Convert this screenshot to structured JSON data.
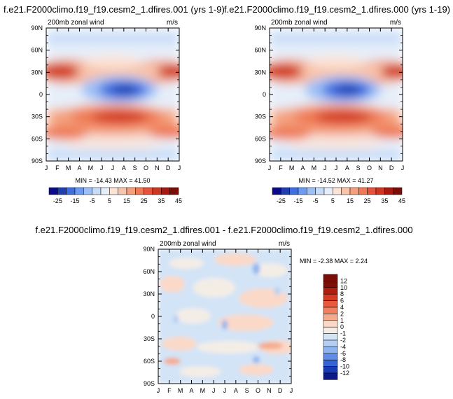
{
  "chart_data": [
    {
      "type": "heatmap",
      "title": "f.e21.F2000climo.f19_f19.cesm2_1.dfires.001 (yrs 1-9)",
      "subtitle_left": "200mb zonal wind",
      "subtitle_right": "m/s",
      "x_ticks": [
        "J",
        "F",
        "M",
        "A",
        "M",
        "J",
        "J",
        "A",
        "S",
        "O",
        "N",
        "D",
        "J"
      ],
      "y_ticks": [
        "90N",
        "60N",
        "30N",
        "0",
        "30S",
        "60S",
        "90S"
      ],
      "stats": "MIN = -14.43 MAX = 41.50",
      "colorbar_labels": [
        "-25",
        "-15",
        "-5",
        "5",
        "15",
        "25",
        "35",
        "45"
      ],
      "zmin": -14.43,
      "zmax": 41.5
    },
    {
      "type": "heatmap",
      "title": "f.e21.F2000climo.f19_f19.cesm2_1.dfires.000 (yrs 1-19)",
      "subtitle_left": "200mb zonal wind",
      "subtitle_right": "m/s",
      "x_ticks": [
        "J",
        "F",
        "M",
        "A",
        "M",
        "J",
        "J",
        "A",
        "S",
        "O",
        "N",
        "D",
        "J"
      ],
      "y_ticks": [
        "90N",
        "60N",
        "30N",
        "0",
        "30S",
        "60S",
        "90S"
      ],
      "stats": "MIN = -14.52 MAX = 41.27",
      "colorbar_labels": [
        "-25",
        "-15",
        "-5",
        "5",
        "15",
        "25",
        "35",
        "45"
      ],
      "zmin": -14.52,
      "zmax": 41.27
    },
    {
      "type": "heatmap",
      "title": "f.e21.F2000climo.f19_f19.cesm2_1.dfires.001 - f.e21.F2000climo.f19_f19.cesm2_1.dfires.000",
      "subtitle_left": "200mb zonal wind",
      "subtitle_right": "m/s",
      "x_ticks": [
        "J",
        "F",
        "M",
        "A",
        "M",
        "J",
        "J",
        "A",
        "S",
        "O",
        "N",
        "D",
        "J"
      ],
      "y_ticks": [
        "90N",
        "60N",
        "30N",
        "0",
        "30S",
        "60S",
        "90S"
      ],
      "stats": "MIN =  -2.38 MAX =   2.24",
      "colorbar_labels": [
        "12",
        "10",
        "8",
        "6",
        "4",
        "2",
        "1",
        "0",
        "-1",
        "-2",
        "-4",
        "-6",
        "-8",
        "-10",
        "-12"
      ],
      "zmin": -2.38,
      "zmax": 2.24
    }
  ],
  "colors": {
    "main_scale": [
      "#0b0b8a",
      "#1f3fb0",
      "#3f6ee0",
      "#6c9af0",
      "#9ebff5",
      "#c6dcf8",
      "#e6eef9",
      "#fbe3d6",
      "#f8c4ac",
      "#f4a07e",
      "#ef7a55",
      "#e8523a",
      "#cf3520",
      "#a8180e",
      "#7c0c06"
    ],
    "diff_scale": [
      "#7c0c06",
      "#b01e10",
      "#d53a22",
      "#e8593b",
      "#f08060",
      "#f5aa8c",
      "#fbd9c8",
      "#f4ede6",
      "#d3e4f7",
      "#b4cff3",
      "#8db4ee",
      "#5f8de6",
      "#3564d6",
      "#1b3ab8",
      "#0b1a88"
    ]
  }
}
